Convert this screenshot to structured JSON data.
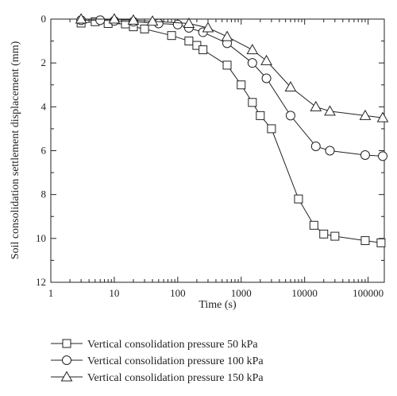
{
  "chart_data": {
    "type": "line",
    "xlabel": "Time (s)",
    "ylabel": "Soil consolidation settlement displacement (mm)",
    "x_scale": "log",
    "xlim": [
      1,
      180000
    ],
    "ylim": [
      0,
      12
    ],
    "y_inverted": true,
    "x_ticks": [
      "1",
      "10",
      "100",
      "1000",
      "10000",
      "100000"
    ],
    "y_ticks": [
      "0",
      "2",
      "4",
      "6",
      "8",
      "10",
      "12"
    ],
    "legend_position": "bottom",
    "series": [
      {
        "name": "Vertical consolidation pressure 50 kPa",
        "marker": "square",
        "points": [
          [
            3,
            0.18
          ],
          [
            5,
            0.12
          ],
          [
            8,
            0.2
          ],
          [
            15,
            0.22
          ],
          [
            20,
            0.35
          ],
          [
            30,
            0.45
          ],
          [
            80,
            0.75
          ],
          [
            150,
            1.0
          ],
          [
            200,
            1.2
          ],
          [
            250,
            1.4
          ],
          [
            600,
            2.1
          ],
          [
            1000,
            3.0
          ],
          [
            1500,
            3.8
          ],
          [
            2000,
            4.4
          ],
          [
            3000,
            5.0
          ],
          [
            8000,
            8.2
          ],
          [
            14000,
            9.4
          ],
          [
            20000,
            9.8
          ],
          [
            30000,
            9.9
          ],
          [
            90000,
            10.1
          ],
          [
            160000,
            10.2
          ]
        ]
      },
      {
        "name": "Vertical consolidation pressure 100 kPa",
        "marker": "circle",
        "points": [
          [
            3,
            0.05
          ],
          [
            6,
            0.05
          ],
          [
            10,
            0.08
          ],
          [
            20,
            0.12
          ],
          [
            50,
            0.2
          ],
          [
            100,
            0.25
          ],
          [
            150,
            0.4
          ],
          [
            250,
            0.6
          ],
          [
            600,
            1.1
          ],
          [
            1500,
            2.0
          ],
          [
            2500,
            2.7
          ],
          [
            6000,
            4.4
          ],
          [
            15000,
            5.8
          ],
          [
            25000,
            6.0
          ],
          [
            90000,
            6.2
          ],
          [
            170000,
            6.25
          ]
        ]
      },
      {
        "name": "Vertical consolidation pressure 150 kPa",
        "marker": "triangle",
        "points": [
          [
            3,
            0.0
          ],
          [
            10,
            0.0
          ],
          [
            20,
            0.05
          ],
          [
            40,
            0.1
          ],
          [
            150,
            0.2
          ],
          [
            300,
            0.4
          ],
          [
            600,
            0.8
          ],
          [
            1500,
            1.4
          ],
          [
            2500,
            1.9
          ],
          [
            6000,
            3.1
          ],
          [
            15000,
            4.0
          ],
          [
            25000,
            4.2
          ],
          [
            90000,
            4.4
          ],
          [
            170000,
            4.5
          ]
        ]
      }
    ]
  }
}
